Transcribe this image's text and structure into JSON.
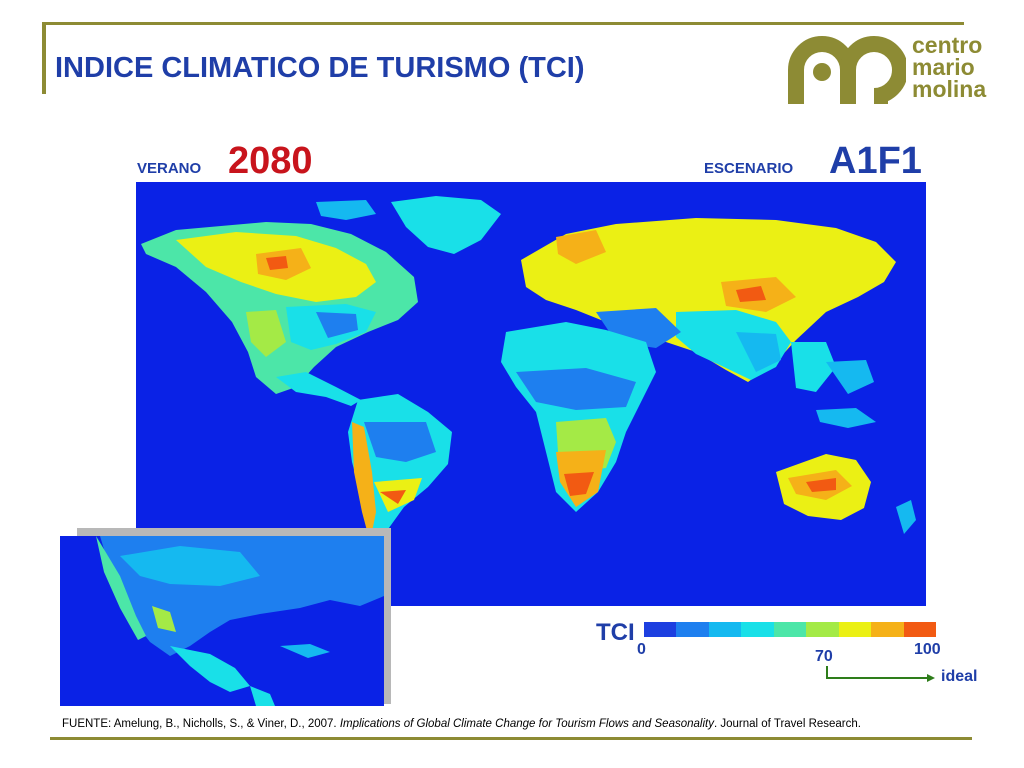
{
  "header": {
    "title": "INDICE CLIMATICO DE TURISMO (TCI)",
    "logo_lines": [
      "centro",
      "mario",
      "molina"
    ]
  },
  "map_labels": {
    "season": "VERANO",
    "year": "2080",
    "scenario_label": "ESCENARIO",
    "scenario_value": "A1F1"
  },
  "legend": {
    "title": "TCI",
    "min_label": "0",
    "mid_label": "70",
    "max_label": "100",
    "ideal_label": "ideal",
    "colors": [
      "#1d3fe0",
      "#1e7fef",
      "#15b9f0",
      "#19e0e8",
      "#4ce6a8",
      "#a4ea46",
      "#ebf014",
      "#f5b118",
      "#f25a12"
    ]
  },
  "source": {
    "prefix": "FUENTE: Amelung, B., Nicholls, S., & Viner, D., 2007. ",
    "title_italic": "Implications of Global Climate Change for Tourism Flows and Seasonality",
    "suffix": ". Journal of Travel Research."
  },
  "colors": {
    "ocean": "#0a22e6",
    "brand": "#8d8b34",
    "heading_blue": "#1f3ea8",
    "year_red": "#c8141c"
  }
}
